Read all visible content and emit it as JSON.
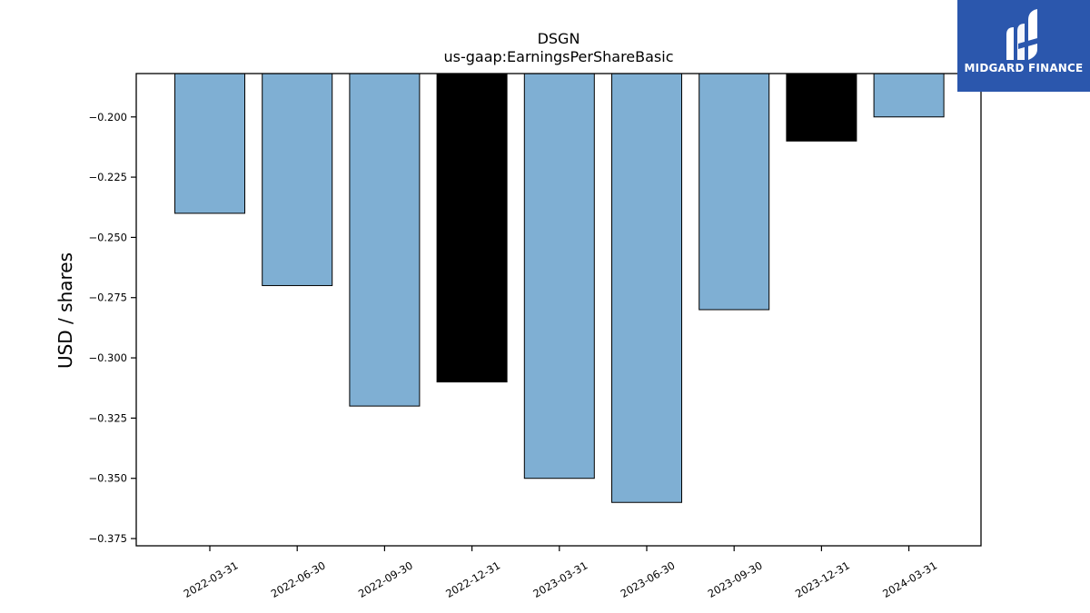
{
  "chart_data": {
    "type": "bar",
    "title": "DSGN",
    "subtitle": "us-gaap:EarningsPerShareBasic",
    "xlabel": "",
    "ylabel": "USD / shares",
    "categories": [
      "2022-03-31",
      "2022-06-30",
      "2022-09-30",
      "2022-12-31",
      "2023-03-31",
      "2023-06-30",
      "2023-09-30",
      "2023-12-31",
      "2024-03-31"
    ],
    "values": [
      -0.24,
      -0.27,
      -0.32,
      -0.31,
      -0.35,
      -0.36,
      -0.28,
      -0.21,
      -0.2
    ],
    "bar_colors": [
      "#7fafd3",
      "#7fafd3",
      "#7fafd3",
      "#000000",
      "#7fafd3",
      "#7fafd3",
      "#7fafd3",
      "#000000",
      "#7fafd3"
    ],
    "ylim": [
      -0.378,
      -0.182
    ],
    "yticks": [
      -0.2,
      -0.225,
      -0.25,
      -0.275,
      -0.3,
      -0.325,
      -0.35,
      -0.375
    ],
    "ytick_labels": [
      "−0.200",
      "−0.225",
      "−0.250",
      "−0.275",
      "−0.300",
      "−0.325",
      "−0.350",
      "−0.375"
    ],
    "y_inverted": true,
    "grid": false,
    "legend": "none"
  },
  "logo": {
    "text": "MIDGARD FINANCE",
    "background": "#2b57ad"
  }
}
